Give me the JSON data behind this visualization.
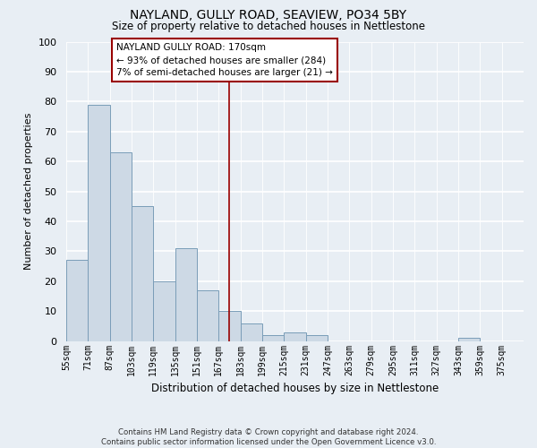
{
  "title": "NAYLAND, GULLY ROAD, SEAVIEW, PO34 5BY",
  "subtitle": "Size of property relative to detached houses in Nettlestone",
  "xlabel": "Distribution of detached houses by size in Nettlestone",
  "ylabel": "Number of detached properties",
  "bar_color": "#cdd9e5",
  "bar_edge_color": "#7a9db8",
  "background_color": "#e8eef4",
  "grid_color": "#ffffff",
  "bins": [
    55,
    71,
    87,
    103,
    119,
    135,
    151,
    167,
    183,
    199,
    215,
    231,
    247,
    263,
    279,
    295,
    311,
    327,
    343,
    359,
    375
  ],
  "counts": [
    27,
    79,
    63,
    45,
    20,
    31,
    17,
    10,
    6,
    2,
    3,
    2,
    0,
    0,
    0,
    0,
    0,
    0,
    1,
    0
  ],
  "tick_labels": [
    "55sqm",
    "71sqm",
    "87sqm",
    "103sqm",
    "119sqm",
    "135sqm",
    "151sqm",
    "167sqm",
    "183sqm",
    "199sqm",
    "215sqm",
    "231sqm",
    "247sqm",
    "263sqm",
    "279sqm",
    "295sqm",
    "311sqm",
    "327sqm",
    "343sqm",
    "359sqm",
    "375sqm"
  ],
  "ylim": [
    0,
    100
  ],
  "yticks": [
    0,
    10,
    20,
    30,
    40,
    50,
    60,
    70,
    80,
    90,
    100
  ],
  "bin_width": 16,
  "vline_x": 167,
  "vline_color": "#990000",
  "annotation_title": "NAYLAND GULLY ROAD: 170sqm",
  "annotation_line1": "← 93% of detached houses are smaller (284)",
  "annotation_line2": "7% of semi-detached houses are larger (21) →",
  "annotation_box_color": "white",
  "annotation_box_edge": "#990000",
  "footer_line1": "Contains HM Land Registry data © Crown copyright and database right 2024.",
  "footer_line2": "Contains public sector information licensed under the Open Government Licence v3.0."
}
